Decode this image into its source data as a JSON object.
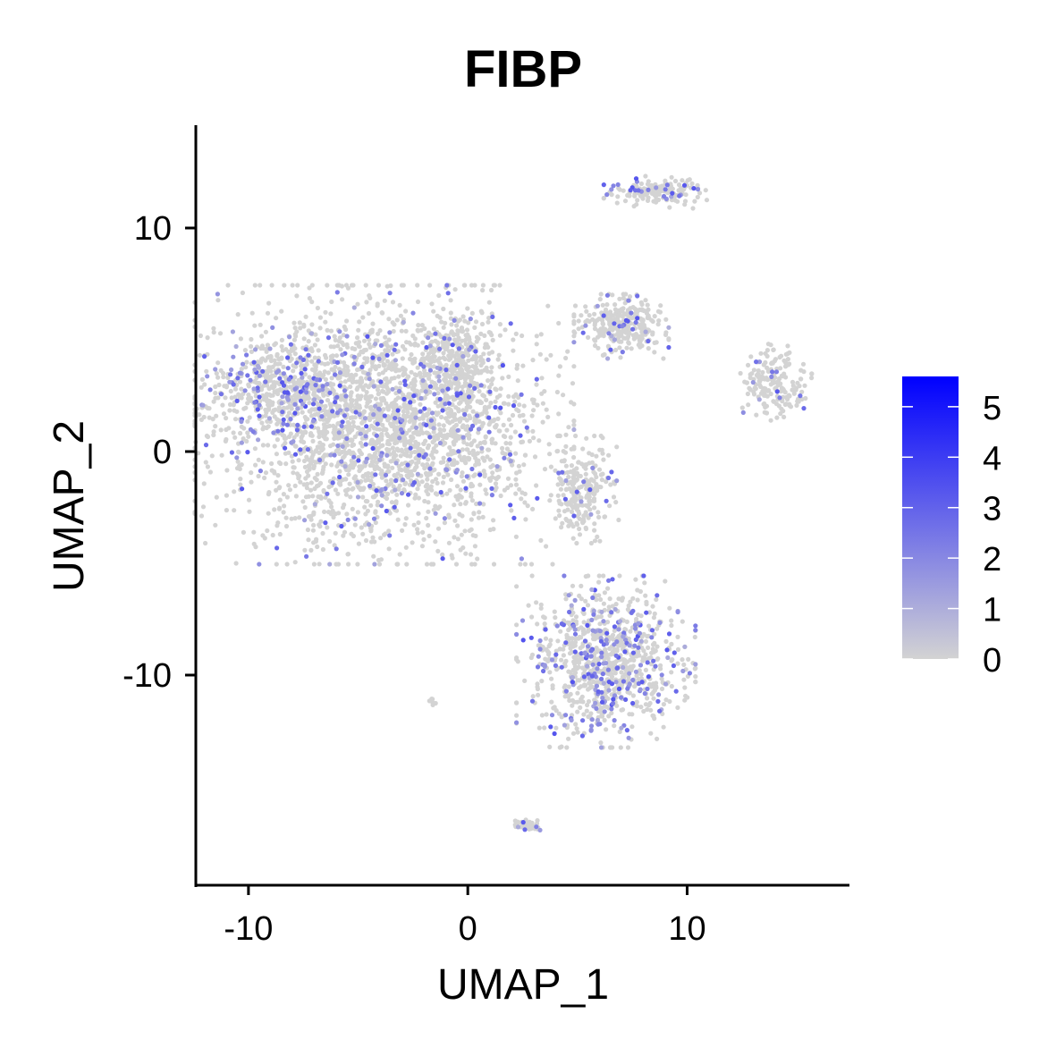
{
  "chart_data": {
    "type": "scatter",
    "title": "FIBP",
    "xlabel": "UMAP_1",
    "ylabel": "UMAP_2",
    "xlim": [
      -12.4,
      17.4
    ],
    "ylim": [
      -19.4,
      14.6
    ],
    "x_ticks": [
      {
        "value": -10,
        "label": "-10"
      },
      {
        "value": 0,
        "label": "0"
      },
      {
        "value": 10,
        "label": "10"
      }
    ],
    "y_ticks": [
      {
        "value": 10,
        "label": "10"
      },
      {
        "value": 0,
        "label": "0"
      },
      {
        "value": -10,
        "label": "-10"
      }
    ],
    "grid": false,
    "color_scale": {
      "low_color": "#d3d3d3",
      "high_color": "#0000ff",
      "min": 0,
      "max": 5.6,
      "ticks": [
        {
          "value": 0,
          "label": "0"
        },
        {
          "value": 1,
          "label": "1"
        },
        {
          "value": 2,
          "label": "2"
        },
        {
          "value": 3,
          "label": "3"
        },
        {
          "value": 4,
          "label": "4"
        },
        {
          "value": 5,
          "label": "5"
        }
      ],
      "legend_position": "right"
    },
    "clusters": [
      {
        "name": "large-cluster",
        "center": [
          -3.8,
          1.2
        ],
        "sx": 3.6,
        "sy": 2.6,
        "n": 2600,
        "expr_rate": 0.09
      },
      {
        "name": "large-cluster-left-lobe",
        "center": [
          -8.6,
          3.0
        ],
        "sx": 1.6,
        "sy": 0.9,
        "n": 360,
        "expr_rate": 0.22
      },
      {
        "name": "large-cluster-upper-right-lobe",
        "center": [
          -0.5,
          4.0
        ],
        "sx": 0.8,
        "sy": 1.0,
        "n": 260,
        "expr_rate": 0.08
      },
      {
        "name": "lower-cluster",
        "center": [
          6.3,
          -9.4
        ],
        "sx": 1.7,
        "sy": 1.6,
        "n": 950,
        "expr_rate": 0.2
      },
      {
        "name": "middle-cluster",
        "center": [
          5.2,
          -1.7
        ],
        "sx": 0.7,
        "sy": 1.0,
        "n": 230,
        "expr_rate": 0.05
      },
      {
        "name": "star-cluster",
        "center": [
          7.0,
          5.6
        ],
        "sx": 0.9,
        "sy": 0.6,
        "n": 300,
        "expr_rate": 0.1
      },
      {
        "name": "top-cluster",
        "center": [
          8.6,
          11.6
        ],
        "sx": 1.0,
        "sy": 0.3,
        "n": 160,
        "expr_rate": 0.12
      },
      {
        "name": "right-cluster",
        "center": [
          14.0,
          3.0
        ],
        "sx": 0.7,
        "sy": 0.8,
        "n": 190,
        "expr_rate": 0.08
      },
      {
        "name": "bottom-small-cluster",
        "center": [
          2.6,
          -16.7
        ],
        "sx": 0.3,
        "sy": 0.15,
        "n": 45,
        "expr_rate": 0.1
      },
      {
        "name": "tiny-cluster",
        "center": [
          -1.6,
          -11.2
        ],
        "sx": 0.1,
        "sy": 0.1,
        "n": 6,
        "expr_rate": 0.0
      }
    ]
  }
}
